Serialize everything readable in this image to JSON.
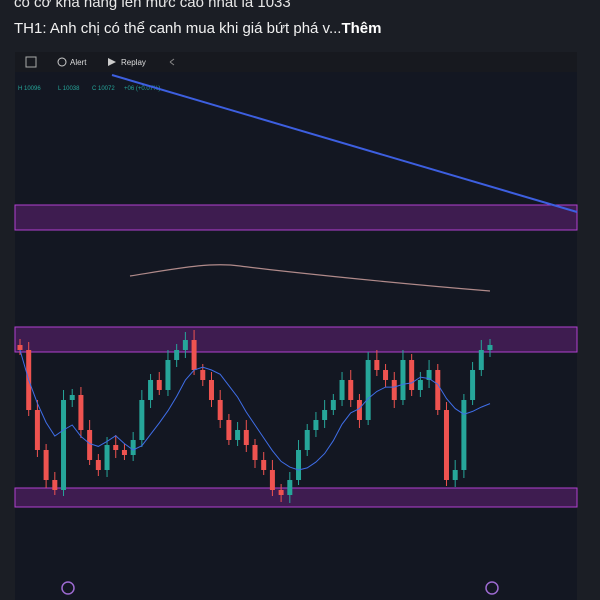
{
  "post": {
    "text_line_1": "có cơ khả năng lên mức cao nhất là 1033",
    "text_line_2": "TH1: Anh chị có thể canh mua khi giá bứt phá v...",
    "more": "Thêm",
    "toolbar": {
      "alert": "Alert",
      "replay": "Replay"
    },
    "legend": {
      "high": "H 10096",
      "low": "L 10038",
      "close": "C 10072",
      "change": "+06 (+0.07%)"
    }
  }
}
